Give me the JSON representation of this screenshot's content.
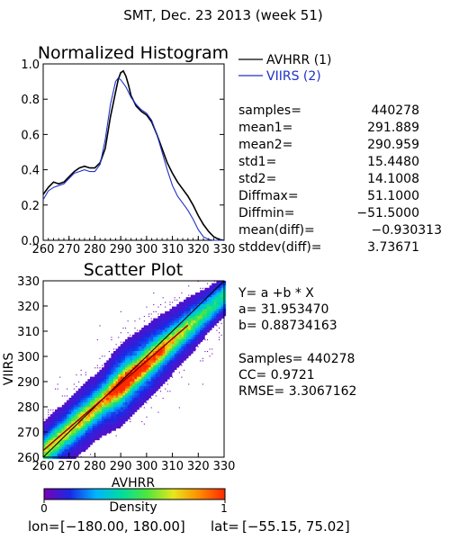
{
  "title": "SMT,  Dec. 23 2013 (week 51)",
  "colors": {
    "avhrr": "#000000",
    "viirs": "#2030c8",
    "fit": "#8b0000",
    "identity": "#000000"
  },
  "histogram": {
    "title": "Normalized Histogram",
    "legend": [
      {
        "label": "AVHRR (1)",
        "color": "#000000"
      },
      {
        "label": "VIIRS (2)",
        "color": "#2030c8"
      }
    ],
    "stats": [
      {
        "label": "samples=",
        "value": "440278"
      },
      {
        "label": "mean1=",
        "value": "291.889"
      },
      {
        "label": "mean2=",
        "value": "290.959"
      },
      {
        "label": "std1=",
        "value": "15.4480"
      },
      {
        "label": "std2=",
        "value": "14.1008"
      },
      {
        "label": "Diffmax=",
        "value": "51.1000"
      },
      {
        "label": "Diffmin=",
        "value": "−51.5000"
      },
      {
        "label": "mean(diff)=",
        "value": "−0.930313"
      },
      {
        "label": "stddev(diff)=",
        "value": "3.73671"
      }
    ]
  },
  "scatter": {
    "title": "Scatter Plot",
    "xlabel": "AVHRR",
    "ylabel": "VIIRS",
    "fit_lines": [
      "Y= a +b * X",
      "a= 31.953470",
      "b= 0.88734163"
    ],
    "stats_lines": [
      "Samples= 440278",
      "CC=  0.9721",
      "RMSE= 3.3067162"
    ]
  },
  "colorbar": {
    "label": "Density",
    "min_label": "0",
    "max_label": "1",
    "stops": [
      "#7a00b4",
      "#1a28e6",
      "#00b4ff",
      "#00dca0",
      "#50e63c",
      "#e6e61e",
      "#ff8c00",
      "#ff2800"
    ]
  },
  "footer": {
    "lon_label": "lon=",
    "lon_range": "[−180.00, 180.00]",
    "lat_label": "lat=",
    "lat_range": "[−55.15, 75.02]"
  },
  "chart_data": [
    {
      "type": "line",
      "title": "Normalized Histogram",
      "xlim": [
        260,
        330
      ],
      "ylim": [
        0,
        1.0
      ],
      "x_ticks": [
        260,
        270,
        280,
        290,
        300,
        310,
        320,
        330
      ],
      "y_ticks": [
        "0.0",
        "0.2",
        "0.4",
        "0.6",
        "0.8",
        "1.0"
      ],
      "x": [
        260,
        262,
        264,
        266,
        268,
        270,
        272,
        274,
        276,
        278,
        280,
        282,
        284,
        286,
        288,
        289,
        290,
        291,
        292,
        293,
        294,
        296,
        298,
        300,
        302,
        304,
        306,
        308,
        310,
        312,
        314,
        316,
        318,
        320,
        322,
        324,
        326,
        328,
        330
      ],
      "series": [
        {
          "name": "AVHRR (1)",
          "values": [
            0.26,
            0.3,
            0.33,
            0.32,
            0.33,
            0.36,
            0.39,
            0.41,
            0.42,
            0.41,
            0.41,
            0.44,
            0.52,
            0.7,
            0.84,
            0.91,
            0.95,
            0.96,
            0.93,
            0.88,
            0.82,
            0.76,
            0.73,
            0.71,
            0.67,
            0.6,
            0.52,
            0.44,
            0.38,
            0.33,
            0.29,
            0.25,
            0.2,
            0.14,
            0.09,
            0.05,
            0.02,
            0.005,
            0.0
          ]
        },
        {
          "name": "VIIRS (2)",
          "values": [
            0.23,
            0.28,
            0.3,
            0.31,
            0.32,
            0.35,
            0.38,
            0.39,
            0.4,
            0.39,
            0.39,
            0.43,
            0.57,
            0.77,
            0.9,
            0.92,
            0.91,
            0.89,
            0.87,
            0.84,
            0.81,
            0.77,
            0.74,
            0.72,
            0.68,
            0.6,
            0.5,
            0.4,
            0.31,
            0.25,
            0.21,
            0.17,
            0.12,
            0.06,
            0.02,
            0.005,
            0.0,
            0.0,
            0.0
          ]
        }
      ]
    },
    {
      "type": "scatter",
      "title": "Scatter Plot",
      "xlabel": "AVHRR",
      "ylabel": "VIIRS",
      "xlim": [
        260,
        330
      ],
      "ylim": [
        260,
        330
      ],
      "x_ticks": [
        260,
        270,
        280,
        290,
        300,
        310,
        320,
        330
      ],
      "y_ticks": [
        260,
        270,
        280,
        290,
        300,
        310,
        320,
        330
      ],
      "fit": {
        "a": 31.95347,
        "b": 0.88734163,
        "x_range": [
          260,
          316
        ]
      },
      "identity_line": true,
      "samples": 440278,
      "cc": 0.9721,
      "rmse": 3.3067162
    }
  ]
}
